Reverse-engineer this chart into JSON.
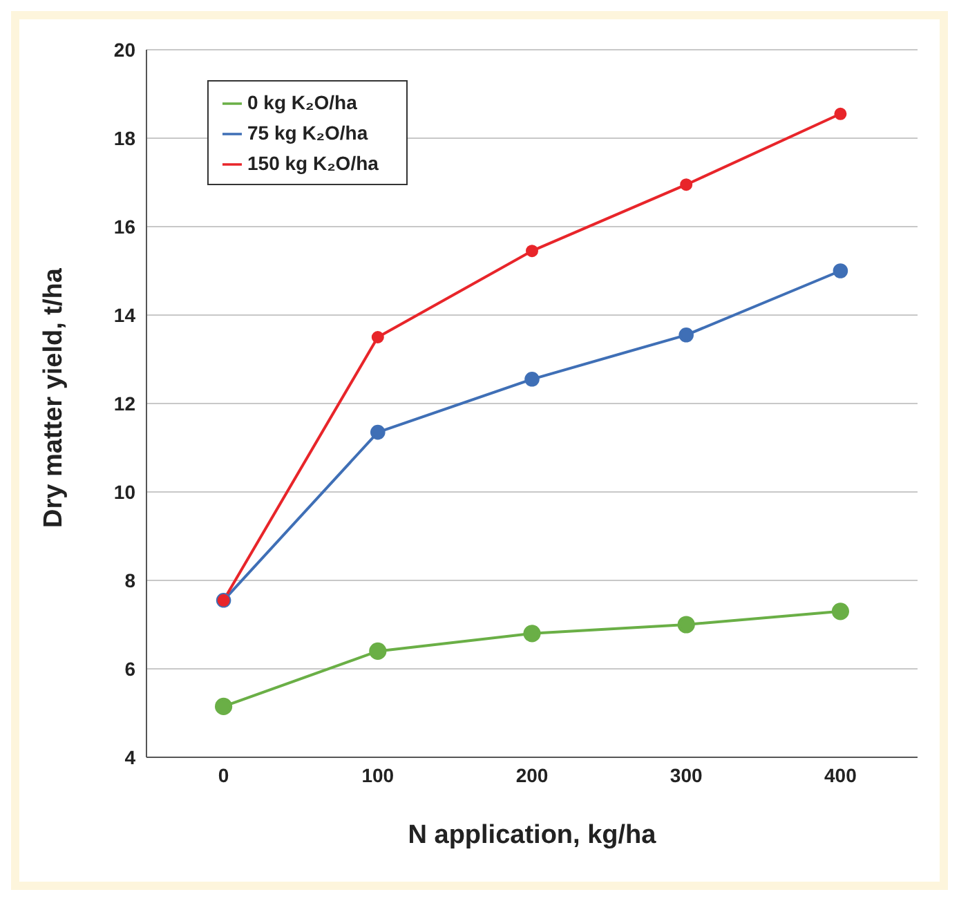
{
  "chart_data": {
    "type": "line",
    "xlabel": "N application, kg/ha",
    "ylabel": "Dry matter yield, t/ha",
    "x": [
      0,
      100,
      200,
      300,
      400
    ],
    "series": [
      {
        "name": "0 kg K₂O/ha",
        "color": "#6aaf46",
        "values": [
          5.15,
          6.4,
          6.8,
          7.0,
          7.3
        ]
      },
      {
        "name": "75 kg K₂O/ha",
        "color": "#3f6fb6",
        "values": [
          7.55,
          11.35,
          12.55,
          13.55,
          15.0
        ]
      },
      {
        "name": "150 kg K₂O/ha",
        "color": "#e8252a",
        "values": [
          7.55,
          13.5,
          15.45,
          16.95,
          18.55
        ]
      }
    ],
    "xlim": [
      -50,
      450
    ],
    "xticks": [
      0,
      100,
      200,
      300,
      400
    ],
    "ylim": [
      4,
      20
    ],
    "yticks": [
      4,
      6,
      8,
      10,
      12,
      14,
      16,
      18,
      20
    ],
    "grid": "y",
    "legend": "top left",
    "marker": "circle",
    "line_style": "solid"
  }
}
